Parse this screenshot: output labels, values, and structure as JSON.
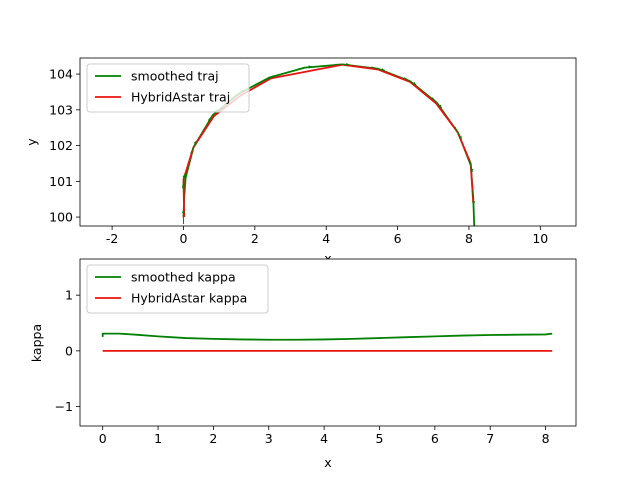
{
  "chart_data": [
    {
      "type": "line",
      "xlabel": "x",
      "ylabel": "y",
      "xlim": [
        -2.9,
        11.0
      ],
      "ylim": [
        99.75,
        104.45
      ],
      "xticks": [
        "-2",
        "0",
        "2",
        "4",
        "6",
        "8",
        "10"
      ],
      "yticks": [
        "100",
        "101",
        "102",
        "103",
        "104"
      ],
      "legend_position": "upper left",
      "series": [
        {
          "name": "smoothed traj",
          "color": "#008000",
          "points": [
            [
              0.0,
              100.0
            ],
            [
              0.02,
              100.55
            ],
            [
              0.06,
              101.1
            ],
            [
              0.28,
              101.95
            ],
            [
              0.82,
              102.85
            ],
            [
              1.55,
              103.45
            ],
            [
              2.4,
              103.9
            ],
            [
              3.4,
              104.18
            ],
            [
              4.45,
              104.27
            ],
            [
              5.45,
              104.15
            ],
            [
              6.35,
              103.8
            ],
            [
              7.1,
              103.2
            ],
            [
              7.7,
              102.35
            ],
            [
              8.05,
              101.45
            ],
            [
              8.12,
              100.55
            ],
            [
              8.15,
              99.7
            ]
          ]
        },
        {
          "name": "HybridAstar traj",
          "color": "#e8130f",
          "points": [
            [
              0.02,
              100.0
            ],
            [
              0.0,
              101.05
            ],
            [
              0.28,
              101.95
            ],
            [
              0.85,
              102.82
            ],
            [
              1.6,
              103.4
            ],
            [
              2.45,
              103.88
            ],
            [
              4.45,
              104.26
            ],
            [
              5.45,
              104.13
            ],
            [
              6.35,
              103.78
            ],
            [
              7.08,
              103.18
            ],
            [
              7.68,
              102.38
            ],
            [
              8.05,
              101.5
            ],
            [
              8.12,
              100.4
            ]
          ]
        }
      ],
      "heading_arrows": [
        [
          0.0,
          100.0
        ],
        [
          0.0,
          101.0
        ],
        [
          0.28,
          101.95
        ],
        [
          0.82,
          102.85
        ],
        [
          1.55,
          103.45
        ],
        [
          2.4,
          103.88
        ],
        [
          3.4,
          104.18
        ],
        [
          4.45,
          104.27
        ],
        [
          5.45,
          104.15
        ],
        [
          6.35,
          103.8
        ],
        [
          7.1,
          103.2
        ],
        [
          7.7,
          102.35
        ],
        [
          8.05,
          101.45
        ],
        [
          8.12,
          100.55
        ]
      ]
    },
    {
      "type": "line",
      "xlabel": "x",
      "ylabel": "kappa",
      "xlim": [
        -0.41,
        8.55
      ],
      "ylim": [
        -1.35,
        1.65
      ],
      "xticks": [
        "0",
        "1",
        "2",
        "3",
        "4",
        "5",
        "6",
        "7",
        "8"
      ],
      "yticks": [
        "−1",
        "0",
        "1"
      ],
      "legend_position": "upper left",
      "series": [
        {
          "name": "smoothed kappa",
          "color": "#008000",
          "points": [
            [
              0.0,
              0.25
            ],
            [
              0.0,
              0.31
            ],
            [
              0.3,
              0.31
            ],
            [
              0.6,
              0.29
            ],
            [
              1.0,
              0.26
            ],
            [
              1.5,
              0.23
            ],
            [
              2.0,
              0.215
            ],
            [
              2.5,
              0.205
            ],
            [
              3.0,
              0.2
            ],
            [
              3.5,
              0.2
            ],
            [
              4.0,
              0.205
            ],
            [
              4.5,
              0.215
            ],
            [
              5.0,
              0.23
            ],
            [
              5.5,
              0.245
            ],
            [
              6.0,
              0.26
            ],
            [
              6.5,
              0.275
            ],
            [
              7.0,
              0.285
            ],
            [
              7.5,
              0.29
            ],
            [
              8.0,
              0.295
            ],
            [
              8.12,
              0.31
            ]
          ]
        },
        {
          "name": "HybridAstar kappa",
          "color": "#e8130f",
          "points": [
            [
              0.0,
              0.0
            ],
            [
              8.12,
              0.0
            ]
          ]
        }
      ]
    }
  ]
}
